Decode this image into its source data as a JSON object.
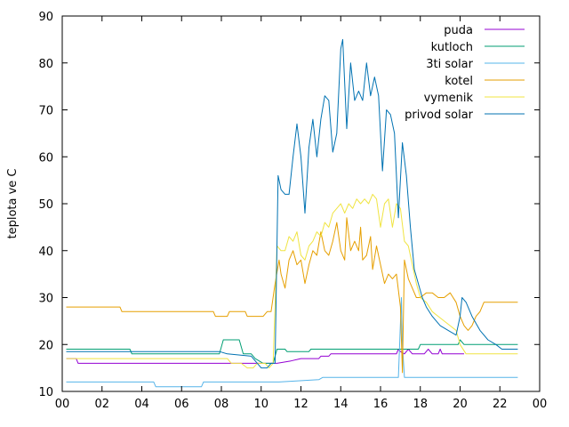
{
  "chart_data": {
    "type": "line",
    "title": "",
    "xlabel": "",
    "ylabel": "teplota ve C",
    "xlim": [
      0,
      24
    ],
    "ylim": [
      10,
      90
    ],
    "x_tick_labels": [
      "00",
      "02",
      "04",
      "06",
      "08",
      "10",
      "12",
      "14",
      "16",
      "18",
      "20",
      "22",
      "00"
    ],
    "y_tick_labels": [
      "10",
      "20",
      "30",
      "40",
      "50",
      "60",
      "70",
      "80",
      "90"
    ],
    "grid": false,
    "legend_position": "top-right",
    "series": [
      {
        "name": "puda",
        "color": "#9400d3",
        "points": [
          [
            0.2,
            17
          ],
          [
            0.7,
            17
          ],
          [
            0.8,
            16
          ],
          [
            10.6,
            16
          ],
          [
            10.8,
            16
          ],
          [
            11.5,
            16.5
          ],
          [
            12.0,
            17
          ],
          [
            12.9,
            17
          ],
          [
            13.0,
            17.5
          ],
          [
            13.4,
            17.5
          ],
          [
            13.5,
            18
          ],
          [
            16.8,
            18
          ],
          [
            16.9,
            19
          ],
          [
            17.0,
            18.5
          ],
          [
            17.2,
            18
          ],
          [
            17.4,
            19
          ],
          [
            17.6,
            18
          ],
          [
            18.2,
            18
          ],
          [
            18.4,
            19
          ],
          [
            18.6,
            18
          ],
          [
            18.9,
            18
          ],
          [
            19.0,
            19
          ],
          [
            19.1,
            18
          ],
          [
            20.0,
            18
          ],
          [
            20.2,
            18
          ]
        ]
      },
      {
        "name": "kutloch",
        "color": "#009e73",
        "points": [
          [
            0.2,
            19
          ],
          [
            3.4,
            19
          ],
          [
            3.5,
            18
          ],
          [
            7.9,
            18
          ],
          [
            8.1,
            21
          ],
          [
            8.9,
            21
          ],
          [
            9.1,
            18
          ],
          [
            9.5,
            18
          ],
          [
            9.7,
            17
          ],
          [
            10.1,
            16
          ],
          [
            10.6,
            16
          ],
          [
            10.8,
            19
          ],
          [
            11.2,
            19
          ],
          [
            11.3,
            18.5
          ],
          [
            12.4,
            18.5
          ],
          [
            12.5,
            19
          ],
          [
            17.9,
            19
          ],
          [
            18.0,
            20
          ],
          [
            19.9,
            20
          ],
          [
            20.0,
            21
          ],
          [
            20.2,
            20
          ],
          [
            22.9,
            20
          ]
        ]
      },
      {
        "name": "3ti solar",
        "color": "#56b4e9",
        "points": [
          [
            0.2,
            12
          ],
          [
            4.6,
            12
          ],
          [
            4.7,
            11
          ],
          [
            7.0,
            11
          ],
          [
            7.1,
            12
          ],
          [
            10.0,
            12
          ],
          [
            10.9,
            12
          ],
          [
            12.9,
            12.5
          ],
          [
            13.1,
            13
          ],
          [
            16.9,
            13
          ],
          [
            17.05,
            30
          ],
          [
            17.1,
            20
          ],
          [
            17.2,
            13
          ],
          [
            22.9,
            13
          ]
        ]
      },
      {
        "name": "kotel",
        "color": "#e69f00",
        "points": [
          [
            0.2,
            28
          ],
          [
            2.9,
            28
          ],
          [
            3.0,
            27
          ],
          [
            7.6,
            27
          ],
          [
            7.7,
            26
          ],
          [
            8.3,
            26
          ],
          [
            8.4,
            27
          ],
          [
            9.2,
            27
          ],
          [
            9.3,
            26
          ],
          [
            10.1,
            26
          ],
          [
            10.3,
            27
          ],
          [
            10.5,
            27
          ],
          [
            10.7,
            33
          ],
          [
            10.9,
            38
          ],
          [
            11.0,
            35
          ],
          [
            11.2,
            32
          ],
          [
            11.4,
            38
          ],
          [
            11.6,
            40
          ],
          [
            11.8,
            37
          ],
          [
            12.0,
            38
          ],
          [
            12.2,
            33
          ],
          [
            12.4,
            37
          ],
          [
            12.6,
            40
          ],
          [
            12.8,
            39
          ],
          [
            13.0,
            44
          ],
          [
            13.2,
            40
          ],
          [
            13.4,
            39
          ],
          [
            13.6,
            42
          ],
          [
            13.8,
            46
          ],
          [
            14.0,
            40
          ],
          [
            14.2,
            38
          ],
          [
            14.3,
            47
          ],
          [
            14.5,
            40
          ],
          [
            14.7,
            42
          ],
          [
            14.9,
            40
          ],
          [
            15.0,
            45
          ],
          [
            15.1,
            38
          ],
          [
            15.3,
            39
          ],
          [
            15.5,
            43
          ],
          [
            15.6,
            36
          ],
          [
            15.8,
            41
          ],
          [
            16.0,
            37
          ],
          [
            16.2,
            33
          ],
          [
            16.4,
            35
          ],
          [
            16.6,
            34
          ],
          [
            16.8,
            35
          ],
          [
            17.0,
            28
          ],
          [
            17.1,
            14
          ],
          [
            17.2,
            38
          ],
          [
            17.4,
            34
          ],
          [
            17.6,
            32
          ],
          [
            17.8,
            30
          ],
          [
            18.0,
            30
          ],
          [
            18.3,
            31
          ],
          [
            18.6,
            31
          ],
          [
            18.9,
            30
          ],
          [
            19.2,
            30
          ],
          [
            19.5,
            31
          ],
          [
            19.8,
            29
          ],
          [
            20.0,
            26
          ],
          [
            20.2,
            24
          ],
          [
            20.4,
            23
          ],
          [
            20.6,
            24
          ],
          [
            20.8,
            26
          ],
          [
            21.0,
            27
          ],
          [
            21.2,
            29
          ],
          [
            22.9,
            29
          ]
        ]
      },
      {
        "name": "vymenik",
        "color": "#f0e442",
        "points": [
          [
            0.2,
            17
          ],
          [
            8.3,
            17
          ],
          [
            8.5,
            16
          ],
          [
            9.0,
            16
          ],
          [
            9.3,
            15
          ],
          [
            9.6,
            15
          ],
          [
            9.8,
            16
          ],
          [
            10.2,
            16
          ],
          [
            10.4,
            15
          ],
          [
            10.6,
            16
          ],
          [
            10.8,
            41
          ],
          [
            11.0,
            40
          ],
          [
            11.2,
            40
          ],
          [
            11.4,
            43
          ],
          [
            11.6,
            42
          ],
          [
            11.8,
            44
          ],
          [
            12.0,
            39
          ],
          [
            12.2,
            38
          ],
          [
            12.4,
            41
          ],
          [
            12.6,
            42
          ],
          [
            12.8,
            44
          ],
          [
            13.0,
            43
          ],
          [
            13.2,
            46
          ],
          [
            13.4,
            45
          ],
          [
            13.6,
            48
          ],
          [
            13.8,
            49
          ],
          [
            14.0,
            50
          ],
          [
            14.2,
            48
          ],
          [
            14.4,
            50
          ],
          [
            14.6,
            49
          ],
          [
            14.8,
            51
          ],
          [
            15.0,
            50
          ],
          [
            15.2,
            51
          ],
          [
            15.4,
            50
          ],
          [
            15.6,
            52
          ],
          [
            15.8,
            51
          ],
          [
            16.0,
            45
          ],
          [
            16.2,
            50
          ],
          [
            16.4,
            51
          ],
          [
            16.6,
            45
          ],
          [
            16.8,
            50
          ],
          [
            17.0,
            49
          ],
          [
            17.2,
            42
          ],
          [
            17.4,
            41
          ],
          [
            17.6,
            37
          ],
          [
            17.8,
            33
          ],
          [
            18.0,
            30
          ],
          [
            18.3,
            29
          ],
          [
            18.6,
            27
          ],
          [
            18.9,
            26
          ],
          [
            19.2,
            25
          ],
          [
            19.5,
            24
          ],
          [
            19.8,
            23
          ],
          [
            20.0,
            20
          ],
          [
            20.3,
            18
          ],
          [
            22.9,
            18
          ]
        ]
      },
      {
        "name": "privod solar",
        "color": "#0072b2",
        "points": [
          [
            0.2,
            18.5
          ],
          [
            7.9,
            18.5
          ],
          [
            8.3,
            18
          ],
          [
            9.5,
            17.5
          ],
          [
            10.0,
            15
          ],
          [
            10.3,
            15
          ],
          [
            10.5,
            16
          ],
          [
            10.7,
            16
          ],
          [
            10.85,
            56
          ],
          [
            11.0,
            53
          ],
          [
            11.2,
            52
          ],
          [
            11.4,
            52
          ],
          [
            11.6,
            60
          ],
          [
            11.8,
            67
          ],
          [
            12.0,
            60
          ],
          [
            12.2,
            48
          ],
          [
            12.4,
            62
          ],
          [
            12.6,
            68
          ],
          [
            12.8,
            60
          ],
          [
            13.0,
            68
          ],
          [
            13.2,
            73
          ],
          [
            13.4,
            72
          ],
          [
            13.6,
            61
          ],
          [
            13.8,
            65
          ],
          [
            14.0,
            83
          ],
          [
            14.1,
            85
          ],
          [
            14.3,
            66
          ],
          [
            14.5,
            80
          ],
          [
            14.7,
            72
          ],
          [
            14.9,
            74
          ],
          [
            15.1,
            72
          ],
          [
            15.3,
            80
          ],
          [
            15.5,
            73
          ],
          [
            15.7,
            77
          ],
          [
            15.9,
            73
          ],
          [
            16.1,
            57
          ],
          [
            16.3,
            70
          ],
          [
            16.5,
            69
          ],
          [
            16.7,
            65
          ],
          [
            16.9,
            47
          ],
          [
            17.1,
            63
          ],
          [
            17.3,
            56
          ],
          [
            17.5,
            45
          ],
          [
            17.7,
            36
          ],
          [
            17.9,
            33
          ],
          [
            18.1,
            30
          ],
          [
            18.3,
            28
          ],
          [
            18.6,
            26
          ],
          [
            19.0,
            24
          ],
          [
            19.4,
            23
          ],
          [
            19.8,
            22
          ],
          [
            20.0,
            26
          ],
          [
            20.1,
            30
          ],
          [
            20.3,
            29
          ],
          [
            20.6,
            26
          ],
          [
            21.0,
            23
          ],
          [
            21.4,
            21
          ],
          [
            21.8,
            20
          ],
          [
            22.1,
            19
          ],
          [
            22.9,
            19
          ]
        ]
      }
    ]
  }
}
